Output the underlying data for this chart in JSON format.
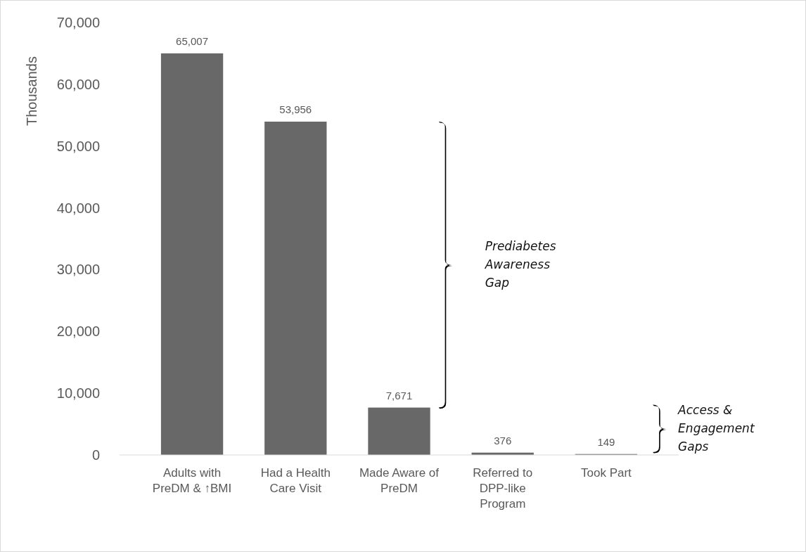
{
  "chart_data": {
    "type": "bar",
    "ylabel": "Thousands",
    "categories": [
      "Adults with PreDM & ↑BMI",
      "Had a Health Care Visit",
      "Made Aware of PreDM",
      "Referred to DPP-like Program",
      "Took Part"
    ],
    "values": [
      65007,
      53956,
      7671,
      376,
      149
    ],
    "color": "#686868",
    "value_labels": [
      "65,007",
      "53,956",
      "7,671",
      "376",
      "149"
    ],
    "ylim": [
      0,
      70000
    ],
    "yticks": [
      {
        "value": 0,
        "label": "0"
      },
      {
        "value": 10000,
        "label": "10,000"
      },
      {
        "value": 20000,
        "label": "20,000"
      },
      {
        "value": 30000,
        "label": "30,000"
      },
      {
        "value": 40000,
        "label": "40,000"
      },
      {
        "value": 50000,
        "label": "50,000"
      },
      {
        "value": 60000,
        "label": "60,000"
      },
      {
        "value": 70000,
        "label": "70,000"
      }
    ],
    "grid": false,
    "annotations": [
      "Prediabetes Awareness Gap",
      "Access & Engagement Gaps"
    ]
  }
}
